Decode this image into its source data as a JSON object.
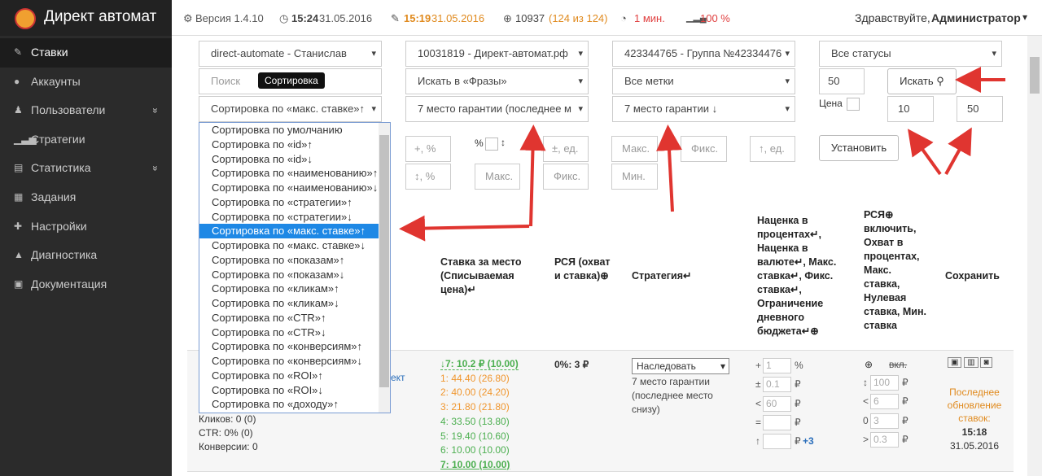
{
  "header": {
    "brand": "Директ автомат",
    "version": "Версия 1.4.10",
    "last_run_time": "15:24",
    "last_run_date": "31.05.2016",
    "last_bid_time": "15:19",
    "last_bid_date": "31.05.2016",
    "queries": "10937",
    "queries_detail": "(124 из 124)",
    "interval": "1 мин.",
    "load": "100 %",
    "greeting": "Здравствуйте,",
    "user": "Администратор"
  },
  "sidebar": [
    "Ставки",
    "Аккаунты",
    "Пользователи",
    "Стратегии",
    "Статистика",
    "Задания",
    "Настройки",
    "Диагностика",
    "Документация"
  ],
  "filters": {
    "account": "direct-automate - Станислав",
    "campaign": "10031819 - Директ-автомат.рф",
    "group": "423344765 - Группа №42334476",
    "status": "Все статусы",
    "search_placeholder": "Поиск",
    "search_in": "Искать в «Фразы»",
    "labels": "Все метки",
    "limit": "50",
    "search_button": "Искать",
    "sort": "Сортировка по «макс. ставке»↑",
    "position": "7 место гарантии (последнее м",
    "position_sort": "7 место гарантии ↓",
    "price_label": "Цена",
    "price_from": "10",
    "price_to": "50",
    "tooltip": "Сортировка"
  },
  "sort_options": [
    "Сортировка по умолчанию",
    "Сортировка по «id»↑",
    "Сортировка по «id»↓",
    "Сортировка по «наименованию»↑",
    "Сортировка по «наименованию»↓",
    "Сортировка по «стратегии»↑",
    "Сортировка по «стратегии»↓",
    "Сортировка по «макс. ставке»↑",
    "Сортировка по «макс. ставке»↓",
    "Сортировка по «показам»↑",
    "Сортировка по «показам»↓",
    "Сортировка по «кликам»↑",
    "Сортировка по «кликам»↓",
    "Сортировка по «CTR»↑",
    "Сортировка по «CTR»↓",
    "Сортировка по «конверсиям»↑",
    "Сортировка по «конверсиям»↓",
    "Сортировка по «ROI»↑",
    "Сортировка по «ROI»↓",
    "Сортировка по «доходу»↑"
  ],
  "sort_selected": 7,
  "bulk": {
    "plus_percent": "+, %",
    "percent_label": "%",
    "plus_minus_units": "±, ед.",
    "max": "Макс.",
    "fix": "Фикс.",
    "up_units": "↑, ед.",
    "set_button": "Установить",
    "updown_percent": "↕, %",
    "max2": "Макс.",
    "fix2": "Фикс.",
    "min": "Мин."
  },
  "table": {
    "headers": [
      "Ставка за место (Списываемая цена)↵",
      "РСЯ (охват и ставка)⊕",
      "Стратегия↵",
      "Наценка в процентах↵, Наценка в валюте↵, Макс. ставка↵, Фикс. ставка↵, Ограничение дневного бюджета↵⊕",
      "РСЯ⊕ включить, Охват в процентах, Макс. ставка, Нулевая ставка, Мин. ставка",
      "Сохранить"
    ],
    "row": {
      "link_fragment": "ект",
      "clicks": "Кликов: 0 (0)",
      "ctr": "CTR: 0% (0)",
      "conversions": "Конверсии: 0",
      "bids": [
        "↓7: 10.2 ₽ (10.00)",
        "1: 44.40 (26.80)",
        "2: 40.00 (24.20)",
        "3: 21.80 (21.80)",
        "4: 33.50 (13.80)",
        "5: 19.40 (10.60)",
        "6: 10.00 (10.00)",
        "7: 10.00 (10.00)"
      ],
      "rsya": "0%: 3 ₽",
      "strategy": "Наследовать",
      "strategy_note": "7 место гарантии (последнее место снизу)",
      "markup_prefixes": [
        "+",
        "±",
        "<",
        "=",
        "↑"
      ],
      "markup_values": [
        "1",
        "0.1",
        "60"
      ],
      "markup_units": [
        "%",
        "₽",
        "₽",
        "₽",
        "₽"
      ],
      "markup_extra": "+3",
      "rsya_enable": "вкл.",
      "rsya_prefixes": [
        "↕",
        "<",
        "0",
        ">"
      ],
      "rsya_values": [
        "100",
        "6",
        "3",
        "0.3"
      ],
      "rsya_units": [
        "₽",
        "₽",
        "₽",
        "₽"
      ],
      "updated_label": "Последнее обновление ставок:",
      "updated_time": "15:18",
      "updated_date": "31.05.2016"
    }
  }
}
